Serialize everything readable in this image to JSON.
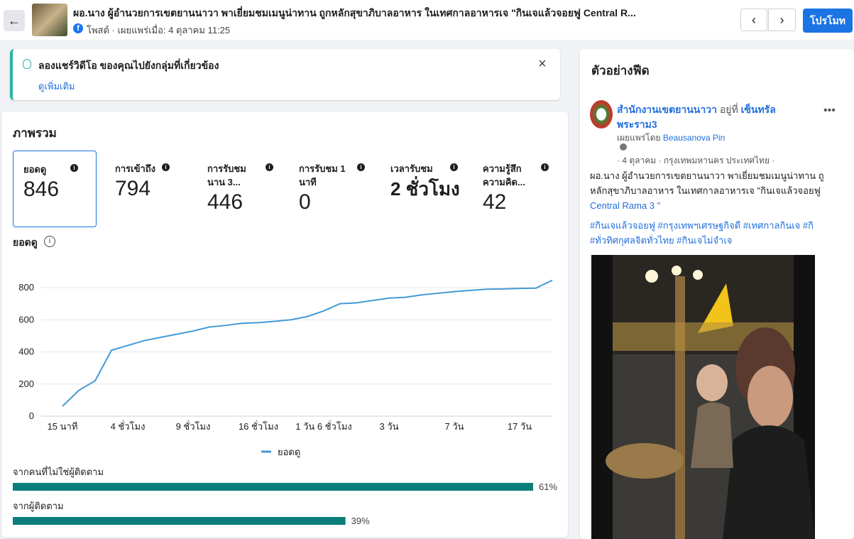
{
  "header": {
    "title": "ผอ.นาง ผู้อำนวยการเขตยานนาวา พาเยี่ยมชมเมนูน่าทาน ถูกหลักสุขาภิบาลอาหาร ในเทศกาลอาหารเจ \"กินเจแล้วจอยฟู Central R...",
    "meta": "โพสต์ · เผยแพร่เมื่อ: 4 ตุลาคม 11:25",
    "promote_button": "โปรโมท"
  },
  "notice": {
    "text": "ลองแชร์วิดีโอ ของคุณไปยังกลุ่มที่เกี่ยวข้อง",
    "link": "ดูเพิ่มเติม"
  },
  "overview": {
    "title": "ภาพรวม",
    "metrics": [
      {
        "label": [
          "ยอดดู"
        ],
        "value": 846
      },
      {
        "label": [
          "การเข้าถึง"
        ],
        "value": 794
      },
      {
        "label": [
          "การรับชม",
          "นาน 3..."
        ],
        "value": 446
      },
      {
        "label": [
          "การรับชม 1",
          "นาที"
        ],
        "value": 0
      },
      {
        "label": [
          "เวลารับชม"
        ],
        "value": "2 ชั่วโมง"
      },
      {
        "label": [
          "ความรู้สึก",
          "ความคิด..."
        ],
        "value": 42
      }
    ]
  },
  "chart_data": [
    {
      "type": "line",
      "title": "ยอดดู",
      "categories": [
        "15 นาที",
        null,
        null,
        null,
        "4 ชั่วโมง",
        null,
        null,
        null,
        "9 ชั่วโมง",
        null,
        null,
        null,
        "16 ชั่วโมง",
        null,
        null,
        null,
        "1 วัน 6 ชั่วโมง",
        null,
        null,
        null,
        "3 วัน",
        null,
        null,
        null,
        "7 วัน",
        null,
        null,
        null,
        "17 วัน",
        null,
        null
      ],
      "series": [
        {
          "name": "ยอดดู",
          "color": "#4599d6",
          "values": [
            62,
            160,
            220,
            410,
            440,
            470,
            490,
            510,
            530,
            555,
            565,
            578,
            582,
            590,
            600,
            620,
            655,
            700,
            705,
            720,
            735,
            740,
            755,
            765,
            775,
            783,
            790,
            792,
            795,
            797,
            846
          ]
        }
      ],
      "ylim": [
        0,
        900
      ],
      "yticks": [
        0,
        200,
        400,
        600,
        800
      ],
      "grid": true,
      "legend": "bottom"
    },
    {
      "type": "hbar",
      "categories": [
        "จากคนที่ไม่ใช่ผู้ติดตาม",
        "จากผู้ติดตาม"
      ],
      "values": [
        61,
        39
      ],
      "value_labels": [
        "61%",
        "39%"
      ],
      "color": "#0a7e7a"
    }
  ],
  "feed_preview": {
    "title": "ตัวอย่างฟีด",
    "author": "สำนักงานเขตยานนาวา",
    "at": "อยู่ที่",
    "place": "เซ็นทรัล พระราม3",
    "published_by": "เผยแพร่โดย",
    "publisher": "Beausanova Pin",
    "date_line": "· 4 ตุลาคม · กรุงเทพมหานคร ประเทศไทย ·",
    "text_lines": [
      "ผอ.นาง ผู้อำนวยการเขตยานนาวา พาเยี่ยมชมเมนูน่าทาน ถู",
      "หลักสุขาภิบาลอาหาร ในเทศกาลอาหารเจ \"กินเจแล้วจอยฟู",
      "Central Rama 3 \""
    ],
    "hashtag_lines": [
      "#กินเจแล้วจอยฟู #กรุงเทพฯเศรษฐกิจดี #เทศกาลกินเจ #กิ",
      "#ทั่วทิศกุศลจิตทั่วไทย #กินเจไม่จำเจ"
    ]
  }
}
